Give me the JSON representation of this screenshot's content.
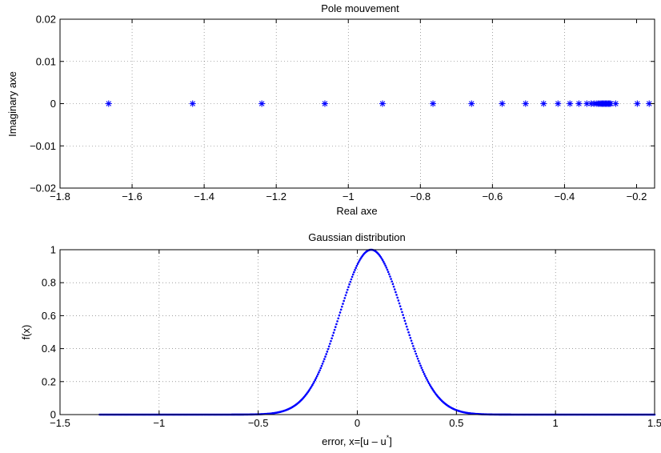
{
  "chart_data": [
    {
      "type": "scatter",
      "title": "Pole mouvement",
      "xlabel": "Real axe",
      "ylabel": "Imaginary axe",
      "xlim": [
        -1.8,
        -0.15
      ],
      "ylim": [
        -0.02,
        0.02
      ],
      "xticks": [
        -1.8,
        -1.6,
        -1.4,
        -1.2,
        -1,
        -0.8,
        -0.6,
        -0.4,
        -0.2
      ],
      "yticks": [
        -0.02,
        -0.01,
        0,
        0.01,
        0.02
      ],
      "xtick_labels": [
        "−1.8",
        "−1.6",
        "−1.4",
        "−1.2",
        "−1",
        "−0.8",
        "−0.6",
        "−0.4",
        "−0.2"
      ],
      "ytick_labels": [
        "−0.02",
        "−0.01",
        "0",
        "0.01",
        "0.02"
      ],
      "grid": true,
      "marker": "asterisk",
      "color": "#0000ff",
      "series": [
        {
          "x": [
            -1.665,
            -1.432,
            -1.24,
            -1.065,
            -0.905,
            -0.765,
            -0.658,
            -0.573,
            -0.508,
            -0.458,
            -0.418,
            -0.385,
            -0.36,
            -0.338,
            -0.326,
            -0.318,
            -0.312,
            -0.307,
            -0.303,
            -0.299,
            -0.296,
            -0.293,
            -0.29,
            -0.287,
            -0.284,
            -0.281,
            -0.278,
            -0.275,
            -0.272,
            -0.258,
            -0.198,
            -0.165
          ],
          "y": [
            0,
            0,
            0,
            0,
            0,
            0,
            0,
            0,
            0,
            0,
            0,
            0,
            0,
            0,
            0,
            0,
            0,
            0,
            0,
            0,
            0,
            0,
            0,
            0,
            0,
            0,
            0,
            0,
            0,
            0,
            0,
            0
          ]
        }
      ]
    },
    {
      "type": "scatter",
      "title": "Gaussian distribution",
      "xlabel": "error, x=[u – u",
      "xlabel_sup": "*",
      "xlabel_end": "]",
      "ylabel": "f(x)",
      "xlim": [
        -1.5,
        1.5
      ],
      "ylim": [
        0,
        1
      ],
      "xticks": [
        -1.5,
        -1,
        -0.5,
        0,
        0.5,
        1,
        1.5
      ],
      "yticks": [
        0,
        0.2,
        0.4,
        0.6,
        0.8,
        1
      ],
      "xtick_labels": [
        "−1.5",
        "−1",
        "−0.5",
        "0",
        "0.5",
        "1",
        "1.5"
      ],
      "ytick_labels": [
        "0",
        "0.2",
        "0.4",
        "0.6",
        "0.8",
        "1"
      ],
      "grid": true,
      "marker": "dot",
      "color": "#0000ff",
      "series": [
        {
          "distribution": "gaussian",
          "mean": 0.07,
          "sigma": 0.16,
          "peak": 1,
          "x_range": [
            -1.3,
            1.5
          ]
        }
      ]
    }
  ]
}
